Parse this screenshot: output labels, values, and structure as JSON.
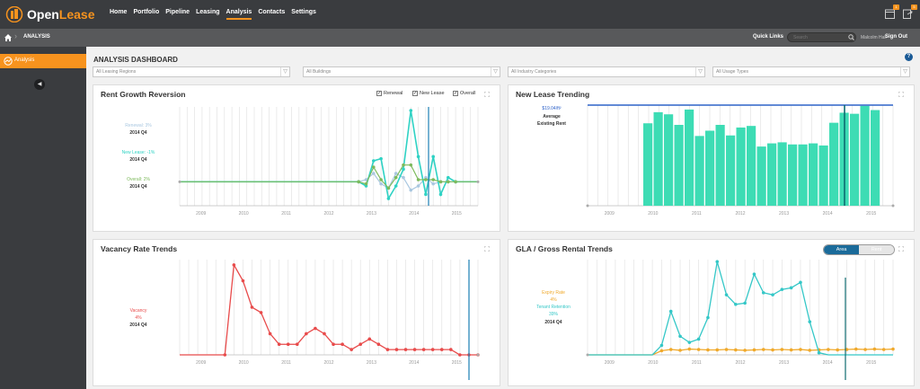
{
  "app": {
    "brand_first": "Open",
    "brand_second": "Lease"
  },
  "nav": {
    "items": [
      "Home",
      "Portfolio",
      "Pipeline",
      "Leasing",
      "Analysis",
      "Contacts",
      "Settings"
    ],
    "active_index": 4
  },
  "header_icons": [
    {
      "name": "calendar-icon",
      "badge": "1"
    },
    {
      "name": "export-icon",
      "badge": "5"
    }
  ],
  "breadcrumb": {
    "current": "ANALYSIS"
  },
  "quick_links": "Quick Links",
  "search": {
    "placeholder": "Search"
  },
  "user": {
    "name": "Malcolm Hall",
    "signout": "Sign Out"
  },
  "sidebar": {
    "active_label": "Analysis"
  },
  "dashboard": {
    "title": "ANALYSIS DASHBOARD"
  },
  "filters": [
    "All Leasing Regions",
    "All Buildings",
    "All Industry Categories",
    "All Usage Types"
  ],
  "colors": {
    "brand": "#f7931e",
    "renewal": "#a9c7e0",
    "new_lease": "#2fd2c4",
    "overall": "#7dba5c",
    "new_lease_bars": "#3ddcb4",
    "vacancy": "#e84b4b",
    "expiry": "#f0a92b",
    "tenant_retention": "#34c7c7",
    "marker": "#1a7fb5"
  },
  "panels": {
    "rent_growth": {
      "title": "Rent Growth Reversion",
      "checkboxes": [
        "Renewal",
        "New Lease",
        "Overall"
      ]
    },
    "new_lease": {
      "title": "New Lease Trending"
    },
    "vacancy": {
      "title": "Vacancy Rate Trends"
    },
    "gla": {
      "title": "GLA / Gross Rental Trends",
      "toggle": [
        "Area",
        "Rent"
      ]
    }
  },
  "chart_data": [
    {
      "type": "line",
      "title": "Rent Growth Reversion",
      "x_tick_labels": [
        "2009",
        "2010",
        "2011",
        "2012",
        "2013",
        "2014",
        "2015"
      ],
      "legend": [
        {
          "label": "Renewal: 3%",
          "period": "2014 Q4"
        },
        {
          "label": "New Lease: -1%",
          "period": "2014 Q4"
        },
        {
          "label": "Overall: 2%",
          "period": "2014 Q4"
        }
      ],
      "series": [
        {
          "name": "Renewal",
          "values": [
            0,
            0,
            0,
            0,
            0,
            0,
            0,
            0,
            0,
            0,
            0,
            0,
            0,
            0,
            0,
            0,
            0,
            0,
            0,
            0,
            0,
            0,
            0,
            0,
            0,
            0.5,
            2,
            -0.5,
            -1.5,
            2,
            1,
            -2,
            -1,
            1,
            -0.5,
            0,
            0,
            0,
            0,
            0,
            0
          ]
        },
        {
          "name": "New Lease",
          "values": [
            0,
            0,
            0,
            0,
            0,
            0,
            0,
            0,
            0,
            0,
            0,
            0,
            0,
            0,
            0,
            0,
            0,
            0,
            0,
            0,
            0,
            0,
            0,
            0,
            0,
            -1,
            5,
            5.5,
            -4,
            -1,
            3,
            17,
            6,
            -3,
            6,
            -3,
            1,
            0,
            0,
            0,
            0
          ]
        },
        {
          "name": "Overall",
          "values": [
            0,
            0,
            0,
            0,
            0,
            0,
            0,
            0,
            0,
            0,
            0,
            0,
            0,
            0,
            0,
            0,
            0,
            0,
            0,
            0,
            0,
            0,
            0,
            0,
            0,
            -0.5,
            3.5,
            0.5,
            -1.5,
            1,
            4,
            4,
            0.5,
            0.5,
            0.5,
            0,
            0,
            0,
            0,
            0,
            0
          ]
        }
      ],
      "ylim": [
        -4,
        17
      ]
    },
    {
      "type": "bar",
      "title": "New Lease Trending",
      "x_tick_labels": [
        "2009",
        "2010",
        "2011",
        "2012",
        "2013",
        "2014",
        "2015"
      ],
      "reference_line": {
        "label": "$19.04/ft²",
        "caption": "Average Existing Rent",
        "value": 19.04
      },
      "values": [
        15.6,
        17.7,
        17.3,
        15.3,
        18.2,
        13.2,
        14.2,
        15.3,
        13.3,
        14.8,
        15.1,
        11.2,
        11.8,
        12.0,
        11.6,
        11.6,
        11.8,
        11.4,
        15.7,
        17.6,
        17.4,
        18.9,
        18.1
      ],
      "ylim": [
        0,
        19.04
      ]
    },
    {
      "type": "line",
      "title": "Vacancy Rate Trends",
      "x_tick_labels": [
        "2009",
        "2010",
        "2011",
        "2012",
        "2013",
        "2014",
        "2015"
      ],
      "legend": [
        {
          "label": "Vacancy",
          "value": "4%",
          "period": "2014 Q4"
        }
      ],
      "series": [
        {
          "name": "Vacancy",
          "values": [
            0,
            0,
            0,
            0,
            0,
            0,
            17,
            14,
            9,
            8,
            4,
            2,
            2,
            2,
            4,
            5,
            4,
            2,
            2,
            1,
            2,
            3,
            2,
            1,
            1,
            1,
            1,
            1,
            1,
            1,
            1,
            0,
            0,
            0
          ]
        }
      ],
      "ylim": [
        0,
        18
      ]
    },
    {
      "type": "line",
      "title": "GLA / Gross Rental Trends",
      "x_tick_labels": [
        "2009",
        "2010",
        "2011",
        "2012",
        "2013",
        "2014",
        "2015"
      ],
      "legend": [
        {
          "label": "Expiry Rate",
          "value": "4%",
          "period": "2014 Q4"
        },
        {
          "label": "Tenant Retention",
          "value": "39%",
          "period": "2014 Q4"
        }
      ],
      "series": [
        {
          "name": "Expiry Rate",
          "values": [
            0,
            0,
            0,
            0,
            0,
            0,
            0,
            0,
            1,
            1.3,
            1.1,
            1.4,
            1.3,
            1.2,
            1.2,
            1.3,
            1.2,
            1.1,
            1.2,
            1.3,
            1.2,
            1.3,
            1.2,
            1.3,
            1.1,
            1.2,
            1.3,
            1.2,
            1.3,
            1.4,
            1.3,
            1.4,
            1.3,
            1.4
          ]
        },
        {
          "name": "Tenant Retention",
          "values": [
            0,
            0,
            0,
            0,
            0,
            0,
            0,
            0,
            2.3,
            10.5,
            4.5,
            3,
            3.8,
            9,
            22.5,
            14.5,
            12.2,
            12.5,
            19.5,
            15,
            14.5,
            15.8,
            16.2,
            17.5,
            8,
            0.5,
            0,
            0,
            0,
            0,
            0,
            0,
            0,
            0
          ]
        }
      ],
      "ylim": [
        0,
        23
      ]
    }
  ]
}
